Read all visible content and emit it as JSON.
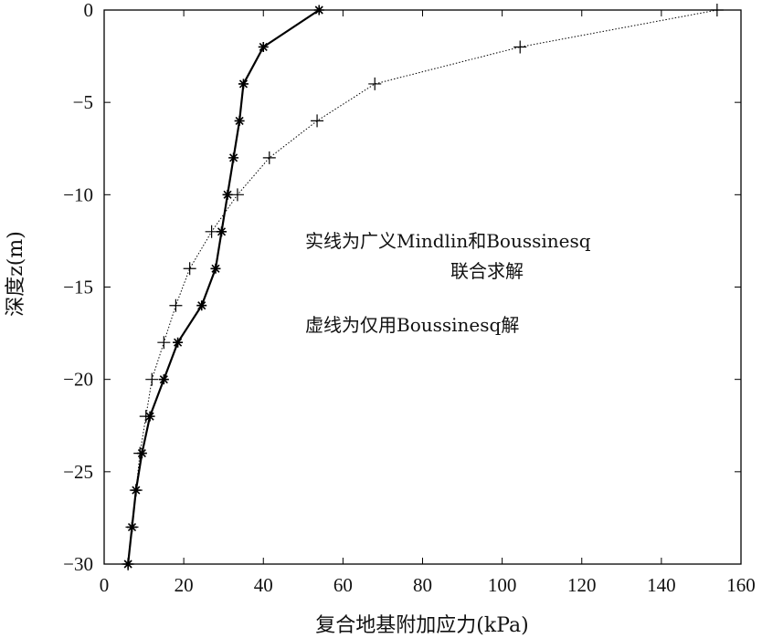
{
  "chart_data": {
    "type": "line",
    "xlabel": "复合地基附加应力(kPa)",
    "ylabel": "深度z(m)",
    "xlim": [
      0,
      160
    ],
    "ylim": [
      -30,
      0
    ],
    "xticks": [
      0,
      20,
      40,
      60,
      80,
      100,
      120,
      140,
      160
    ],
    "yticks": [
      0,
      -5,
      -10,
      -15,
      -20,
      -25,
      -30
    ],
    "xtick_labels": [
      "0",
      "20",
      "40",
      "60",
      "80",
      "100",
      "120",
      "140",
      "160"
    ],
    "ytick_labels": [
      "0",
      "−5",
      "−10",
      "−15",
      "−20",
      "−25",
      "−30"
    ],
    "grid": false,
    "series": [
      {
        "style": "solid",
        "marker": "asterisk",
        "color": "#000000",
        "x": [
          54,
          40,
          35,
          34,
          32.5,
          31,
          29.5,
          28,
          24.5,
          18.5,
          15,
          11.5,
          9.5,
          8,
          7,
          6
        ],
        "y": [
          0,
          -2,
          -4,
          -6,
          -8,
          -10,
          -12,
          -14,
          -16,
          -18,
          -20,
          -22,
          -24,
          -26,
          -28,
          -30
        ]
      },
      {
        "style": "dotted",
        "marker": "plus",
        "color": "#000000",
        "x": [
          154,
          104.5,
          68,
          53.5,
          41.5,
          33.5,
          27,
          21.5,
          18,
          15,
          12,
          10.5,
          9,
          8,
          7,
          6
        ],
        "y": [
          0,
          -2,
          -4,
          -6,
          -8,
          -10,
          -12,
          -14,
          -16,
          -18,
          -20,
          -22,
          -24,
          -26,
          -28,
          -30
        ]
      }
    ],
    "annotations": [
      "实线为广义Mindlin和Boussinesq",
      "联合求解",
      "虚线为仅用Boussinesq解"
    ]
  }
}
